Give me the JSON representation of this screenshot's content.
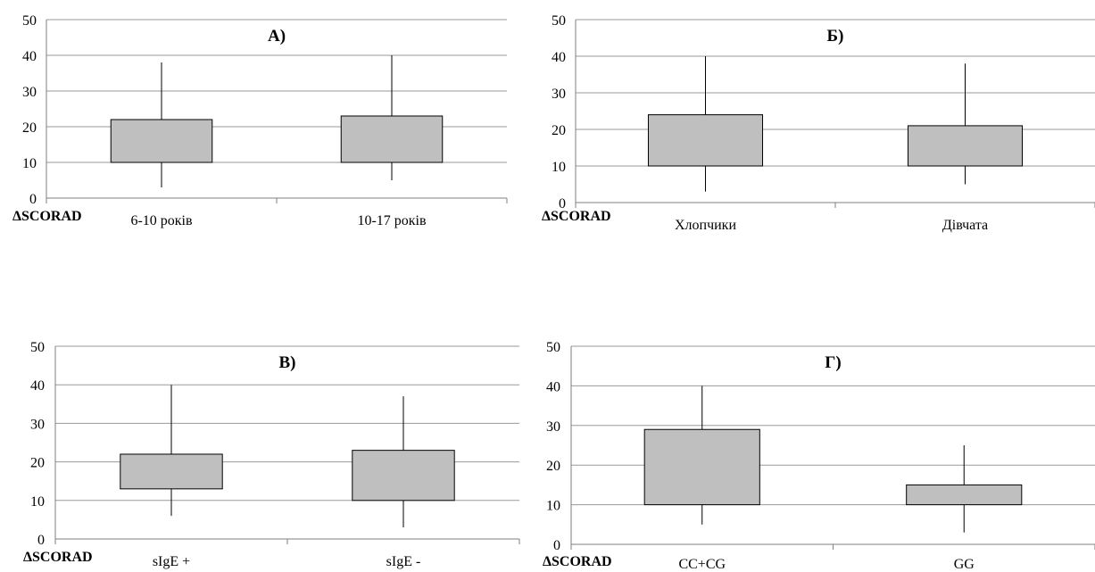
{
  "chart_data": [
    {
      "type": "box",
      "title": "А)",
      "ylabel": "ΔSCORAD",
      "ylim": [
        0,
        50
      ],
      "yticks": [
        "0",
        "10",
        "20",
        "30",
        "40",
        "50"
      ],
      "grid": true,
      "categories": [
        "6-10 років",
        "10-17 років"
      ],
      "boxes": [
        {
          "min": 3,
          "q1": 10,
          "q3": 22,
          "max": 38
        },
        {
          "min": 5,
          "q1": 10,
          "q3": 23,
          "max": 40
        }
      ]
    },
    {
      "type": "box",
      "title": "Б)",
      "ylabel": "ΔSCORAD",
      "ylim": [
        0,
        50
      ],
      "yticks": [
        "0",
        "10",
        "20",
        "30",
        "40",
        "50"
      ],
      "grid": true,
      "categories": [
        "Хлопчики",
        "Дівчата"
      ],
      "boxes": [
        {
          "min": 3,
          "q1": 10,
          "q3": 24,
          "max": 40
        },
        {
          "min": 5,
          "q1": 10,
          "q3": 21,
          "max": 38
        }
      ]
    },
    {
      "type": "box",
      "title": "В)",
      "ylabel": "ΔSCORAD",
      "ylim": [
        0,
        50
      ],
      "yticks": [
        "0",
        "10",
        "20",
        "30",
        "40",
        "50"
      ],
      "grid": true,
      "categories": [
        "sIgE +",
        "sIgE -"
      ],
      "boxes": [
        {
          "min": 6,
          "q1": 13,
          "q3": 22,
          "max": 40
        },
        {
          "min": 3,
          "q1": 10,
          "q3": 23,
          "max": 37
        }
      ]
    },
    {
      "type": "box",
      "title": "Г)",
      "ylabel": "ΔSCORAD",
      "ylim": [
        0,
        50
      ],
      "yticks": [
        "0",
        "10",
        "20",
        "30",
        "40",
        "50"
      ],
      "grid": true,
      "categories": [
        "CC+CG",
        "GG"
      ],
      "boxes": [
        {
          "min": 5,
          "q1": 10,
          "q3": 29,
          "max": 40
        },
        {
          "min": 3,
          "q1": 10,
          "q3": 15,
          "max": 25
        }
      ]
    }
  ],
  "colors": {
    "box_fill": "#bfbfbf",
    "grid": "#9a9a9a",
    "axis": "#7f7f7f",
    "stroke": "#000000"
  }
}
